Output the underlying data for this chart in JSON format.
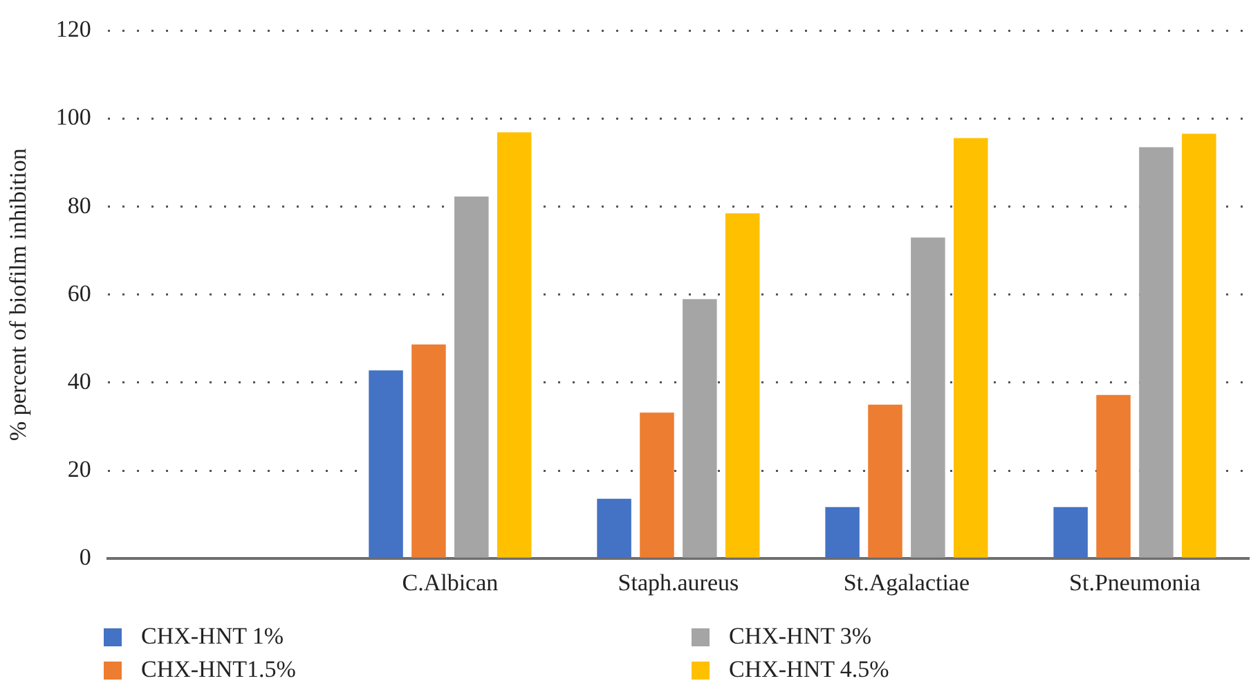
{
  "chart_data": {
    "type": "bar",
    "ylabel": "% percent of biofilm inhibition",
    "categories": [
      null,
      "C.Albican",
      "Staph.aureus",
      "St.Agalactiae",
      "St.Pneumonia"
    ],
    "series": [
      {
        "name": "CHX-HNT 1%",
        "color": "#4472c4",
        "values": [
          null,
          42.8,
          13.6,
          11.7,
          11.7
        ]
      },
      {
        "name": "CHX-HNT1.5%",
        "color": "#ed7d31",
        "values": [
          null,
          48.7,
          33.2,
          35.0,
          37.2
        ]
      },
      {
        "name": "CHX-HNT 3%",
        "color": "#a5a5a5",
        "values": [
          null,
          82.3,
          59.0,
          73.0,
          93.5
        ]
      },
      {
        "name": "CHX-HNT 4.5%",
        "color": "#ffc000",
        "values": [
          null,
          96.9,
          78.5,
          95.6,
          96.6
        ]
      }
    ],
    "ylim": [
      0,
      120
    ],
    "yticks": [
      0,
      20,
      40,
      60,
      80,
      100,
      120
    ],
    "grid": "y",
    "legend": "bottom"
  }
}
